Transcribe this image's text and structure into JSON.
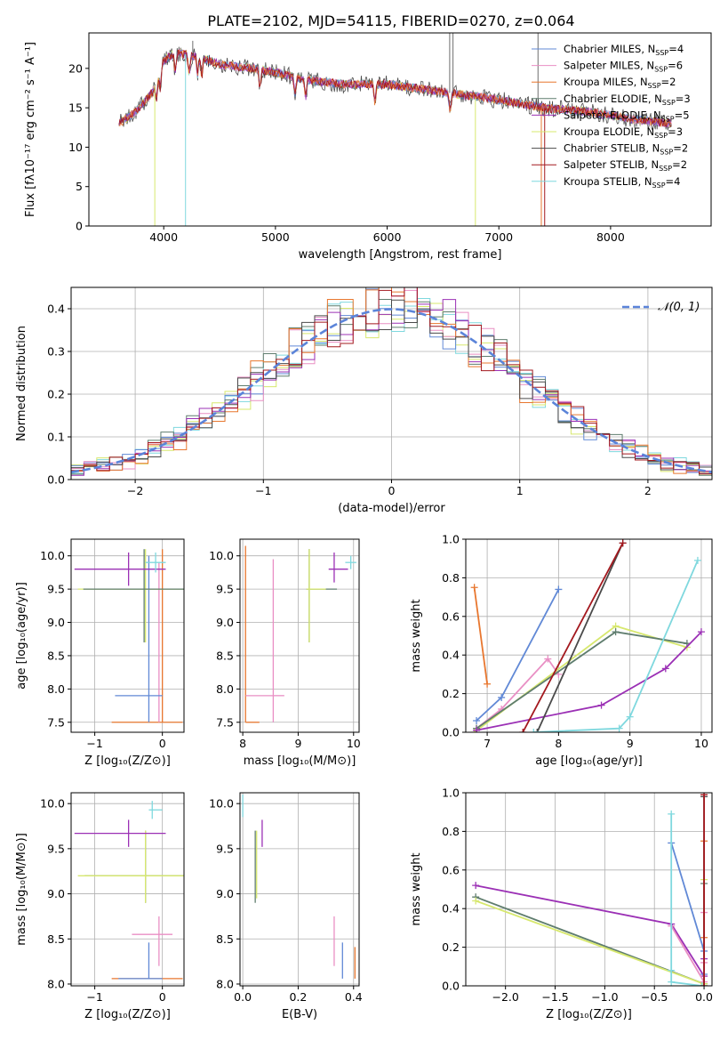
{
  "colors": {
    "series": [
      "#6189d6",
      "#e98fc4",
      "#e8772f",
      "#5f7d6e",
      "#9b30b5",
      "#d7e86e",
      "#4a4a4a",
      "#a3181e",
      "#7fd8de"
    ],
    "grid": "#b0b0b0"
  },
  "figure_title": "PLATE=2102, MJD=54115, FIBERID=0270, z=0.064",
  "chart_data": [
    {
      "id": "spectrum",
      "type": "line",
      "xlabel": "wavelength [Angstrom, rest frame]",
      "ylabel": "Flux [fλ10⁻¹⁷ erg cm⁻² s⁻¹ A⁻¹]",
      "xlim": [
        3330,
        8900
      ],
      "ylim": [
        0,
        24.5
      ],
      "xticks": [
        4000,
        5000,
        6000,
        7000,
        8000
      ],
      "yticks": [
        0,
        5,
        10,
        15,
        20
      ],
      "grid": false,
      "legend_position": "top-right",
      "continuum": {
        "x": [
          3600,
          3750,
          3900,
          4000,
          4100,
          4300,
          4500,
          4800,
          5000,
          5300,
          5600,
          6000,
          6500,
          7000,
          7400,
          7800,
          8200,
          8550
        ],
        "y": [
          13,
          14.5,
          17,
          21,
          22,
          21.5,
          20.5,
          20,
          19.5,
          18.5,
          18,
          18,
          17,
          16,
          15,
          14.5,
          13.5,
          13
        ]
      },
      "series": [
        {
          "name": "Chabrier MILES, N_SSP=4",
          "color_index": 0
        },
        {
          "name": "Salpeter MILES, N_SSP=6",
          "color_index": 1
        },
        {
          "name": "Kroupa MILES, N_SSP=2",
          "color_index": 2
        },
        {
          "name": "Chabrier ELODIE, N_SSP=3",
          "color_index": 3
        },
        {
          "name": "Salpeter ELODIE, N_SSP=5",
          "color_index": 4
        },
        {
          "name": "Kroupa ELODIE, N_SSP=3",
          "color_index": 5
        },
        {
          "name": "Chabrier STELIB, N_SSP=2",
          "color_index": 6
        },
        {
          "name": "Salpeter STELIB, N_SSP=2",
          "color_index": 7
        },
        {
          "name": "Kroupa STELIB, N_SSP=4",
          "color_index": 8
        }
      ]
    },
    {
      "id": "residuals",
      "type": "bar",
      "xlabel": "(data-model)/error",
      "ylabel": "Normed distribution",
      "xlim": [
        -2.5,
        2.5
      ],
      "ylim": [
        0,
        0.45
      ],
      "xticks": [
        -2,
        -1,
        0,
        1,
        2
      ],
      "yticks": [
        0.0,
        0.1,
        0.2,
        0.3,
        0.4
      ],
      "grid": true,
      "legend": "𝒩(0, 1)",
      "legend_position": "top-right",
      "bins": 50,
      "reference": "normal(0,1)"
    },
    {
      "id": "age_vs_Z",
      "type": "scatter",
      "xlabel": "Z [log₁₀(Z/Z⊙)]",
      "ylabel": "age  [log₁₀(age/yr)]",
      "xlim": [
        -1.35,
        0.32
      ],
      "ylim": [
        7.35,
        10.25
      ],
      "xticks": [
        -1,
        0
      ],
      "yticks": [
        7.5,
        8.0,
        8.5,
        9.0,
        9.5,
        10.0
      ],
      "grid": true,
      "points": [
        {
          "color_index": 2,
          "x": 0.0,
          "xerr": [
            0.75,
            0.3
          ],
          "y": 7.5,
          "yerr": [
            0.0,
            2.6
          ]
        },
        {
          "color_index": 1,
          "x": -0.05,
          "xerr": [
            0.0,
            0.0
          ],
          "y": 7.5,
          "yerr": [
            0.0,
            2.4
          ]
        },
        {
          "color_index": 0,
          "x": -0.2,
          "xerr": [
            0.5,
            0.2
          ],
          "y": 7.9,
          "yerr": [
            0.4,
            2.1
          ]
        },
        {
          "color_index": 5,
          "x": -0.25,
          "xerr": [
            1.0,
            0.65
          ],
          "y": 9.5,
          "yerr": [
            0.8,
            0.6
          ]
        },
        {
          "color_index": 3,
          "x": -0.27,
          "xerr": [
            0.9,
            0.6
          ],
          "y": 9.5,
          "yerr": [
            0.8,
            0.6
          ]
        },
        {
          "color_index": 4,
          "x": -0.5,
          "xerr": [
            0.8,
            0.55
          ],
          "y": 9.8,
          "yerr": [
            0.25,
            0.25
          ]
        },
        {
          "color_index": 8,
          "x": -0.1,
          "xerr": [
            0.15,
            0.15
          ],
          "y": 9.9,
          "yerr": [
            0.15,
            0.15
          ]
        }
      ]
    },
    {
      "id": "age_vs_mass",
      "type": "scatter",
      "xlabel": "mass [log₁₀(M/M⊙)]",
      "ylabel": "",
      "xlim": [
        7.95,
        10.1
      ],
      "ylim": [
        7.35,
        10.25
      ],
      "xticks": [
        8,
        9,
        10
      ],
      "yticks": [
        7.5,
        8.0,
        8.5,
        9.0,
        9.5,
        10.0
      ],
      "grid": true,
      "points": [
        {
          "color_index": 2,
          "x": 8.05,
          "xerr": [
            0.0,
            0.25
          ],
          "y": 7.5,
          "yerr": [
            0.0,
            2.65
          ]
        },
        {
          "color_index": 1,
          "x": 8.55,
          "xerr": [
            0.5,
            0.0
          ],
          "y": 7.9,
          "yerr": [
            0.4,
            2.05
          ]
        },
        {
          "color_index": 1,
          "x": 8.55,
          "xerr": [
            0.0,
            0.2
          ],
          "y": 7.9,
          "yerr": [
            0.0,
            0.0
          ]
        },
        {
          "color_index": 3,
          "x": 9.2,
          "xerr": [
            0.05,
            0.5
          ],
          "y": 9.5,
          "yerr": [
            0.8,
            0.6
          ]
        },
        {
          "color_index": 5,
          "x": 9.2,
          "xerr": [
            0.05,
            0.3
          ],
          "y": 9.5,
          "yerr": [
            0.8,
            0.6
          ]
        },
        {
          "color_index": 4,
          "x": 9.65,
          "xerr": [
            0.1,
            0.25
          ],
          "y": 9.8,
          "yerr": [
            0.2,
            0.25
          ]
        },
        {
          "color_index": 8,
          "x": 9.95,
          "xerr": [
            0.1,
            0.1
          ],
          "y": 9.9,
          "yerr": [
            0.1,
            0.1
          ]
        }
      ]
    },
    {
      "id": "weight_vs_age",
      "type": "line",
      "xlabel": "age  [log₁₀(age/yr)]",
      "ylabel": "mass weight",
      "xlim": [
        6.7,
        10.15
      ],
      "ylim": [
        0,
        1
      ],
      "xticks": [
        7,
        8,
        9,
        10
      ],
      "yticks": [
        0.0,
        0.2,
        0.4,
        0.6,
        0.8,
        1.0
      ],
      "grid": true,
      "series": [
        {
          "color_index": 2,
          "x": [
            6.82,
            7.0
          ],
          "y": [
            0.75,
            0.25
          ]
        },
        {
          "color_index": 0,
          "x": [
            6.85,
            7.2,
            8.0
          ],
          "y": [
            0.06,
            0.18,
            0.74
          ]
        },
        {
          "color_index": 1,
          "x": [
            6.85,
            7.2,
            7.85,
            8.0
          ],
          "y": [
            0.02,
            0.12,
            0.38,
            0.3
          ]
        },
        {
          "color_index": 5,
          "x": [
            6.82,
            8.8,
            9.8
          ],
          "y": [
            0.0,
            0.55,
            0.44
          ]
        },
        {
          "color_index": 3,
          "x": [
            6.85,
            8.8,
            9.8
          ],
          "y": [
            0.02,
            0.52,
            0.46
          ]
        },
        {
          "color_index": 4,
          "x": [
            6.85,
            8.6,
            9.5,
            10.0
          ],
          "y": [
            0.01,
            0.14,
            0.33,
            0.52
          ]
        },
        {
          "color_index": 6,
          "x": [
            7.7,
            8.9
          ],
          "y": [
            0.0,
            0.98
          ]
        },
        {
          "color_index": 7,
          "x": [
            7.5,
            8.9
          ],
          "y": [
            0.0,
            0.98
          ]
        },
        {
          "color_index": 8,
          "x": [
            7.65,
            8.85,
            9.0,
            9.95
          ],
          "y": [
            0.0,
            0.02,
            0.08,
            0.89
          ]
        }
      ]
    },
    {
      "id": "mass_vs_Z",
      "type": "scatter",
      "xlabel": "Z [log₁₀(Z/Z⊙)]",
      "ylabel": "mass [log₁₀(M/M⊙)]",
      "xlim": [
        -1.35,
        0.32
      ],
      "ylim": [
        7.98,
        10.12
      ],
      "xticks": [
        -1,
        0
      ],
      "yticks": [
        8.0,
        8.5,
        9.0,
        9.5,
        10.0
      ],
      "grid": true,
      "points": [
        {
          "color_index": 2,
          "x": 0.0,
          "xerr": [
            0.75,
            0.3
          ],
          "y": 8.06,
          "yerr": [
            0.0,
            0.0
          ]
        },
        {
          "color_index": 0,
          "x": -0.2,
          "xerr": [
            0.45,
            0.2
          ],
          "y": 8.06,
          "yerr": [
            0.0,
            0.4
          ]
        },
        {
          "color_index": 1,
          "x": -0.05,
          "xerr": [
            0.4,
            0.2
          ],
          "y": 8.55,
          "yerr": [
            0.35,
            0.2
          ]
        },
        {
          "color_index": 3,
          "x": -0.25,
          "xerr": [
            0.9,
            0.6
          ],
          "y": 9.2,
          "yerr": [
            0.3,
            0.5
          ]
        },
        {
          "color_index": 5,
          "x": -0.25,
          "xerr": [
            1.0,
            0.65
          ],
          "y": 9.2,
          "yerr": [
            0.3,
            0.5
          ]
        },
        {
          "color_index": 4,
          "x": -0.5,
          "xerr": [
            0.8,
            0.55
          ],
          "y": 9.67,
          "yerr": [
            0.15,
            0.15
          ]
        },
        {
          "color_index": 8,
          "x": -0.15,
          "xerr": [
            0.05,
            0.15
          ],
          "y": 9.93,
          "yerr": [
            0.1,
            0.1
          ]
        }
      ]
    },
    {
      "id": "mass_vs_ebv",
      "type": "scatter",
      "xlabel": "E(B-V)",
      "ylabel": "",
      "xlim": [
        -0.01,
        0.42
      ],
      "ylim": [
        7.98,
        10.12
      ],
      "xticks": [
        0.0,
        0.2,
        0.4
      ],
      "yticks": [
        8.0,
        8.5,
        9.0,
        9.5,
        10.0
      ],
      "grid": true,
      "points": [
        {
          "color_index": 8,
          "x": 0.0,
          "xerr": [
            0,
            0
          ],
          "y": 9.95,
          "yerr": [
            0.1,
            0.15
          ]
        },
        {
          "color_index": 3,
          "x": 0.045,
          "xerr": [
            0,
            0
          ],
          "y": 9.3,
          "yerr": [
            0.4,
            0.4
          ]
        },
        {
          "color_index": 5,
          "x": 0.05,
          "xerr": [
            0,
            0
          ],
          "y": 9.3,
          "yerr": [
            0.35,
            0.4
          ]
        },
        {
          "color_index": 4,
          "x": 0.07,
          "xerr": [
            0,
            0
          ],
          "y": 9.67,
          "yerr": [
            0.15,
            0.15
          ]
        },
        {
          "color_index": 1,
          "x": 0.33,
          "xerr": [
            0,
            0
          ],
          "y": 8.55,
          "yerr": [
            0.35,
            0.2
          ]
        },
        {
          "color_index": 0,
          "x": 0.36,
          "xerr": [
            0,
            0
          ],
          "y": 8.06,
          "yerr": [
            0.0,
            0.4
          ]
        },
        {
          "color_index": 2,
          "x": 0.405,
          "xerr": [
            0,
            0
          ],
          "y": 8.06,
          "yerr": [
            0.0,
            0.35
          ]
        }
      ]
    },
    {
      "id": "weight_vs_Z",
      "type": "line",
      "xlabel": "Z [log₁₀(Z/Z⊙)]",
      "ylabel": "mass weight",
      "xlim": [
        -2.4,
        0.08
      ],
      "ylim": [
        0,
        1
      ],
      "xticks": [
        -2.0,
        -1.5,
        -1.0,
        -0.5,
        0.0
      ],
      "yticks": [
        0.0,
        0.2,
        0.4,
        0.6,
        0.8,
        1.0
      ],
      "grid": true,
      "series": [
        {
          "color_index": 4,
          "x": [
            -2.3,
            -0.33,
            0.0,
            0.0
          ],
          "y": [
            0.52,
            0.32,
            0.05,
            0.14
          ]
        },
        {
          "color_index": 3,
          "x": [
            -2.3,
            0.0,
            0.0
          ],
          "y": [
            0.46,
            0.01,
            0.53
          ]
        },
        {
          "color_index": 5,
          "x": [
            -2.3,
            0.0,
            0.0
          ],
          "y": [
            0.44,
            0.01,
            0.55
          ]
        },
        {
          "color_index": 0,
          "x": [
            -0.33,
            0.0,
            0.0
          ],
          "y": [
            0.74,
            0.18,
            0.06
          ]
        },
        {
          "color_index": 1,
          "x": [
            -0.33,
            0.0,
            0.0,
            0.0
          ],
          "y": [
            0.31,
            0.02,
            0.12,
            0.38
          ]
        },
        {
          "color_index": 8,
          "x": [
            -0.33,
            -0.33,
            -0.33,
            -0.02
          ],
          "y": [
            0.89,
            0.08,
            0.02,
            0.0
          ]
        },
        {
          "color_index": 2,
          "x": [
            0.0,
            0.0
          ],
          "y": [
            0.25,
            0.75
          ]
        },
        {
          "color_index": 6,
          "x": [
            0.0,
            0.0
          ],
          "y": [
            0.0,
            0.98
          ]
        },
        {
          "color_index": 7,
          "x": [
            0.0,
            0.0
          ],
          "y": [
            0.0,
            0.99
          ]
        }
      ]
    }
  ]
}
